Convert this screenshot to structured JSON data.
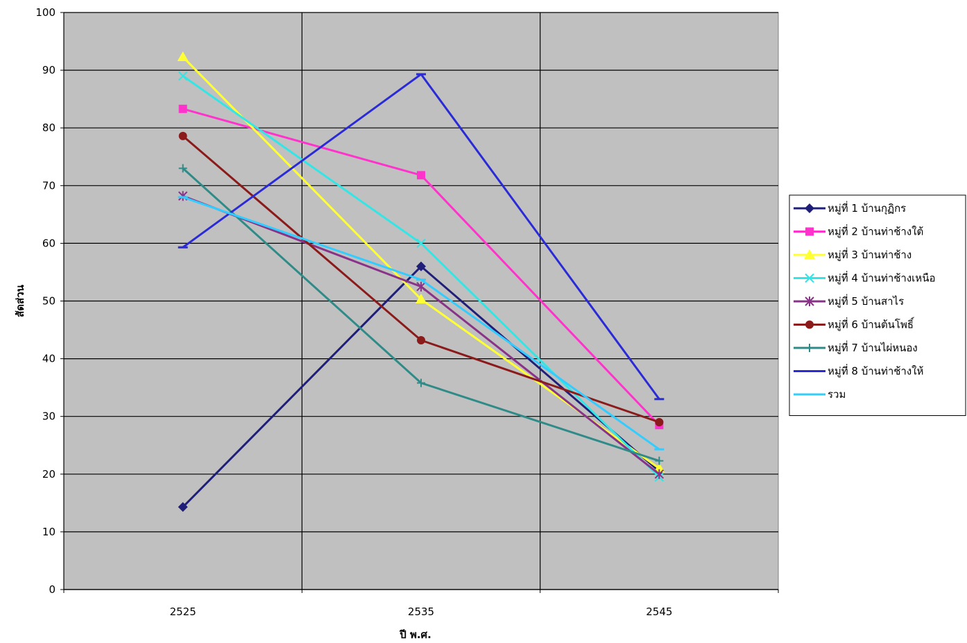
{
  "chart_data": {
    "type": "line",
    "title": "",
    "xlabel": "ปี พ.ศ.",
    "ylabel": "สัดส่วน",
    "x": [
      "2525",
      "2535",
      "2545"
    ],
    "ylim": [
      0,
      100
    ],
    "yticks": [
      0,
      10,
      20,
      30,
      40,
      50,
      60,
      70,
      80,
      90,
      100
    ],
    "grid": true,
    "legend_position": "right",
    "plot_background": "#c0c0c0",
    "series": [
      {
        "name": "หมู่ที่ 1 บ้านกุฏิกร",
        "values": [
          14.3,
          56.0,
          20.5
        ],
        "color": "#1f1f7a",
        "marker": "diamond"
      },
      {
        "name": "หมู่ที่ 2 บ้านท่าช้างใต้",
        "values": [
          83.3,
          71.8,
          28.5
        ],
        "color": "#ff33cc",
        "marker": "square"
      },
      {
        "name": "หมู่ที่ 3 บ้านท่าช้าง",
        "values": [
          92.3,
          50.3,
          21.0
        ],
        "color": "#ffff33",
        "marker": "triangle"
      },
      {
        "name": "หมู่ที่ 4 บ้านท่าช้างเหนือ",
        "values": [
          89.0,
          60.0,
          19.5
        ],
        "color": "#33e6e6",
        "marker": "x"
      },
      {
        "name": "หมู่ที่ 5 บ้านสาไร",
        "values": [
          68.2,
          52.5,
          20.0
        ],
        "color": "#883388",
        "marker": "star"
      },
      {
        "name": "หมู่ที่ 6 บ้านต้นโพธิ์",
        "values": [
          78.6,
          43.2,
          29.0
        ],
        "color": "#8b1a1a",
        "marker": "circle"
      },
      {
        "name": "หมู่ที่ 7 บ้านไผ่หนอง",
        "values": [
          73.0,
          35.8,
          22.3
        ],
        "color": "#2e8b87",
        "marker": "plus"
      },
      {
        "name": "หมู่ที่ 8 บ้านท่าช้างให้",
        "values": [
          59.3,
          89.3,
          33.0
        ],
        "color": "#2a2ad6",
        "marker": "dash"
      },
      {
        "name": "รวม",
        "values": [
          68.0,
          53.7,
          24.3
        ],
        "color": "#33ccff",
        "marker": "dash"
      }
    ]
  }
}
